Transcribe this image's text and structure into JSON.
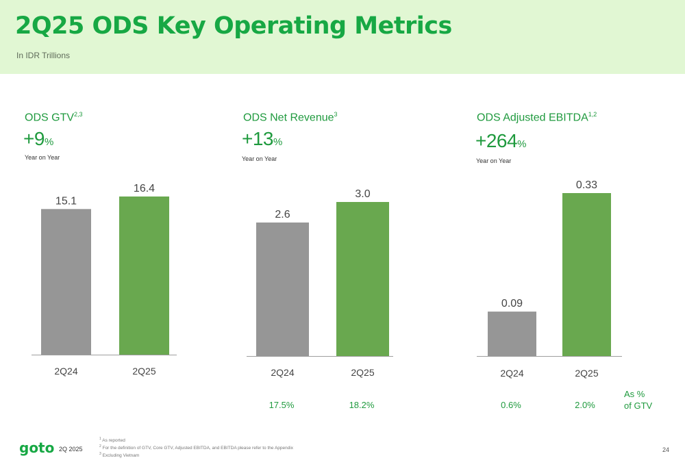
{
  "header": {
    "title": "2Q25 ODS Key Operating Metrics",
    "subtitle": "In IDR Trillions"
  },
  "panels": [
    {
      "title": "ODS GTV",
      "title_sup": "2,3",
      "growth_value": "+9",
      "growth_unit": "%",
      "growth_caption": "Year on Year"
    },
    {
      "title": "ODS Net Revenue",
      "title_sup": "3",
      "growth_value": "+13",
      "growth_unit": "%",
      "growth_caption": "Year on Year"
    },
    {
      "title": "ODS Adjusted EBITDA",
      "title_sup": "1,2",
      "growth_value": "+264",
      "growth_unit": "%",
      "growth_caption": "Year on Year"
    }
  ],
  "chart_data": [
    {
      "type": "bar",
      "categories": [
        "2Q24",
        "2Q25"
      ],
      "values": [
        15.1,
        16.4
      ],
      "value_labels": [
        "15.1",
        "16.4"
      ],
      "colors": [
        "#969696",
        "#69a84f"
      ],
      "title": "ODS GTV",
      "ylim": [
        0,
        16.4
      ]
    },
    {
      "type": "bar",
      "categories": [
        "2Q24",
        "2Q25"
      ],
      "values": [
        2.6,
        3.0
      ],
      "value_labels": [
        "2.6",
        "3.0"
      ],
      "colors": [
        "#969696",
        "#69a84f"
      ],
      "title": "ODS Net Revenue",
      "ylim": [
        0,
        3.0
      ],
      "pct_of_gtv": [
        "17.5%",
        "18.2%"
      ]
    },
    {
      "type": "bar",
      "categories": [
        "2Q24",
        "2Q25"
      ],
      "values": [
        0.09,
        0.33
      ],
      "value_labels": [
        "0.09",
        "0.33"
      ],
      "colors": [
        "#969696",
        "#69a84f"
      ],
      "title": "ODS Adjusted EBITDA",
      "ylim": [
        0,
        0.33
      ],
      "pct_of_gtv": [
        "0.6%",
        "2.0%"
      ]
    }
  ],
  "as_of_gtv_label_line1": "As %",
  "as_of_gtv_label_line2": "of GTV",
  "footnotes": [
    {
      "num": "1",
      "text": "As reported"
    },
    {
      "num": "2",
      "text": "For the definition of GTV, Core GTV, Adjusted EBITDA, and EBITDA please refer to the Appendix"
    },
    {
      "num": "3",
      "text": "Excluding Vietnam"
    }
  ],
  "footer": {
    "logo_text": "goto",
    "period": "2Q 2025",
    "page_number": "24"
  },
  "colors": {
    "brand_green": "#17a844",
    "header_bg": "#e1f7d3",
    "bar_prior": "#969696",
    "bar_current": "#69a84f"
  }
}
